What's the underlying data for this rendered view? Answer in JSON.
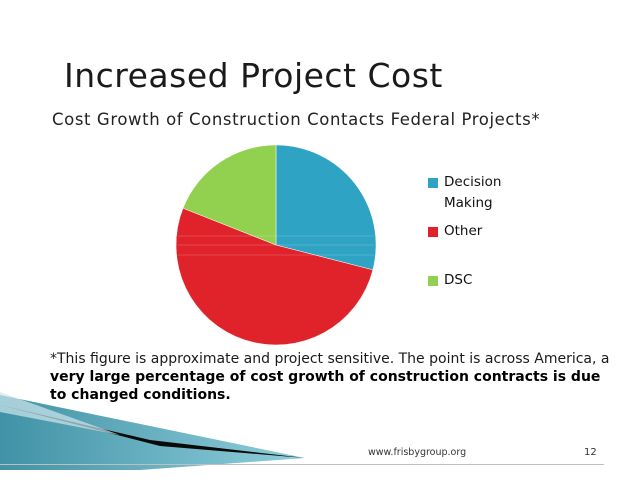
{
  "slide": {
    "title": "Increased Project Cost",
    "subtitle": "Cost Growth of Construction Contacts Federal Projects*",
    "note": {
      "plain1": "*This figure is approximate and project sensitive. The point is across America, a ",
      "bold": "very large percentage of cost growth of construction  contracts is due to changed conditions.",
      "plain2": ""
    },
    "footer_url": "www.frisbygroup.org",
    "page_number": "12"
  },
  "chart_data": {
    "type": "pie",
    "title": "Cost Growth of Construction Contacts Federal Projects*",
    "slices": [
      {
        "label": "Decision Making",
        "value": 29,
        "color": "#2ea3c4"
      },
      {
        "label": "Other",
        "value": 52,
        "color": "#e0222b"
      },
      {
        "label": "DSC",
        "value": 19,
        "color": "#92d050"
      }
    ],
    "legend_labels": [
      "Decision",
      "Making",
      "Other",
      "DSC"
    ],
    "legend_position": "right"
  }
}
